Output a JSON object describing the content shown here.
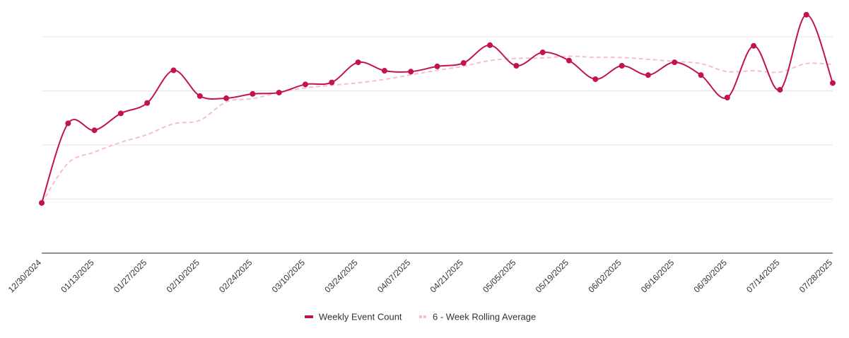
{
  "chart_data": {
    "type": "line",
    "title": "",
    "xlabel": "",
    "ylabel": "",
    "ylim": [
      0,
      100
    ],
    "grid": true,
    "legend": "bottom-center",
    "x": [
      "12/30/2024",
      "01/06/2025",
      "01/13/2025",
      "01/20/2025",
      "01/27/2025",
      "02/03/2025",
      "02/10/2025",
      "02/17/2025",
      "02/24/2025",
      "03/03/2025",
      "03/10/2025",
      "03/17/2025",
      "03/24/2025",
      "03/31/2025",
      "04/07/2025",
      "04/14/2025",
      "04/21/2025",
      "04/28/2025",
      "05/05/2025",
      "05/12/2025",
      "05/19/2025",
      "05/26/2025",
      "06/02/2025",
      "06/09/2025",
      "06/16/2025",
      "06/23/2025",
      "06/30/2025",
      "07/07/2025",
      "07/14/2025",
      "07/21/2025",
      "07/28/2025"
    ],
    "tick_labels": [
      "12/30/2024",
      "01/13/2025",
      "01/27/2025",
      "02/10/2025",
      "02/24/2025",
      "03/10/2025",
      "03/24/2025",
      "04/07/2025",
      "04/21/2025",
      "05/05/2025",
      "05/19/2025",
      "06/02/2025",
      "06/16/2025",
      "06/30/2025",
      "07/14/2025",
      "07/28/2025"
    ],
    "series": [
      {
        "name": "Weekly Event Count",
        "color": "#c2134f",
        "style": "solid",
        "markers": true,
        "values": [
          23.2,
          60.0,
          56.8,
          64.6,
          69.4,
          84.5,
          72.6,
          71.6,
          73.6,
          74.2,
          78.0,
          78.9,
          88.2,
          84.3,
          83.9,
          86.3,
          87.9,
          96.1,
          86.6,
          92.8,
          89.0,
          80.4,
          86.6,
          82.3,
          88.2,
          82.3,
          71.9,
          95.8,
          75.5,
          110.2,
          78.6
        ]
      },
      {
        "name": "6 - Week Rolling Average",
        "color": "#f5bfd0",
        "style": "dashed",
        "markers": false,
        "values": [
          23.2,
          41.6,
          46.7,
          51.2,
          54.8,
          59.8,
          61.4,
          69.9,
          71.4,
          74.2,
          76.4,
          77.6,
          78.7,
          80.3,
          82.4,
          84.5,
          86.4,
          89.0,
          90.0,
          90.2,
          91.0,
          90.5,
          90.4,
          89.6,
          88.6,
          87.6,
          83.9,
          84.3,
          83.7,
          87.6,
          87.2
        ]
      }
    ]
  }
}
